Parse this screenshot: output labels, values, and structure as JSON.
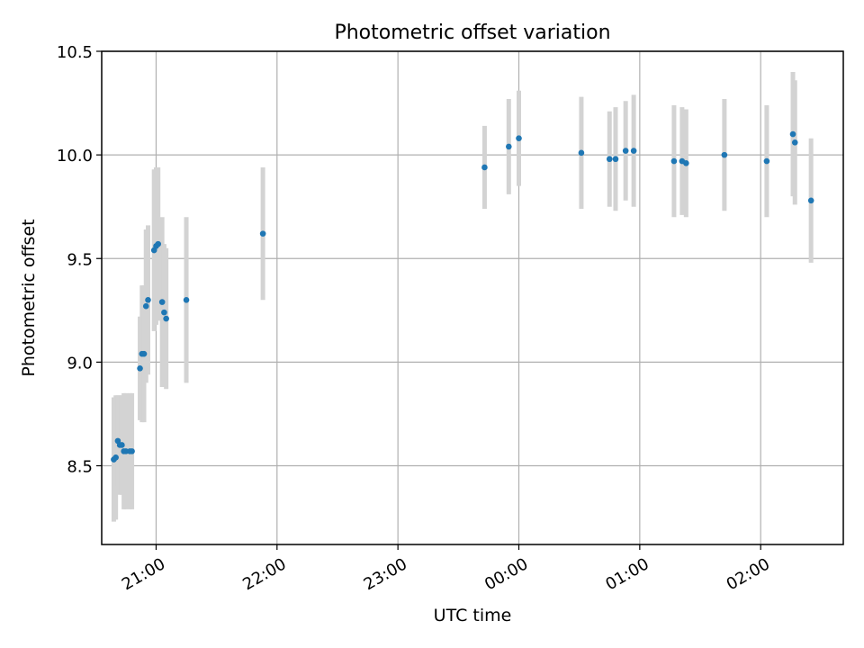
{
  "chart_data": {
    "type": "scatter",
    "title": "Photometric offset variation",
    "xlabel": "UTC time",
    "ylabel": "Photometric offset",
    "x_ticks": [
      "21:00",
      "22:00",
      "23:00",
      "00:00",
      "01:00",
      "02:00"
    ],
    "y_ticks": [
      "8.5",
      "9.0",
      "9.5",
      "10.0",
      "10.5"
    ],
    "ylim": [
      8.12,
      10.5
    ],
    "xlim": [
      "20:33",
      "02:41"
    ],
    "grid": true,
    "colors": {
      "point": "#1f77b4",
      "errorbar": "#d3d3d3",
      "grid": "#b0b0b0"
    },
    "points": [
      {
        "t": "20:39",
        "y": 8.53,
        "err": 0.3
      },
      {
        "t": "20:40",
        "y": 8.54,
        "err": 0.3
      },
      {
        "t": "20:41",
        "y": 8.62,
        "err": 0.22
      },
      {
        "t": "20:42",
        "y": 8.6,
        "err": 0.24
      },
      {
        "t": "20:43",
        "y": 8.6,
        "err": 0.24
      },
      {
        "t": "20:44",
        "y": 8.57,
        "err": 0.28
      },
      {
        "t": "20:45",
        "y": 8.57,
        "err": 0.28
      },
      {
        "t": "20:47",
        "y": 8.57,
        "err": 0.28
      },
      {
        "t": "20:48",
        "y": 8.57,
        "err": 0.28
      },
      {
        "t": "20:52",
        "y": 8.97,
        "err": 0.25
      },
      {
        "t": "20:53",
        "y": 9.04,
        "err": 0.33
      },
      {
        "t": "20:54",
        "y": 9.04,
        "err": 0.33
      },
      {
        "t": "20:55",
        "y": 9.27,
        "err": 0.37
      },
      {
        "t": "20:56",
        "y": 9.3,
        "err": 0.36
      },
      {
        "t": "20:59",
        "y": 9.54,
        "err": 0.39
      },
      {
        "t": "21:00",
        "y": 9.56,
        "err": 0.38
      },
      {
        "t": "21:01",
        "y": 9.57,
        "err": 0.37
      },
      {
        "t": "21:03",
        "y": 9.29,
        "err": 0.41
      },
      {
        "t": "21:04",
        "y": 9.24,
        "err": 0.33
      },
      {
        "t": "21:05",
        "y": 9.21,
        "err": 0.34
      },
      {
        "t": "21:15",
        "y": 9.3,
        "err": 0.4
      },
      {
        "t": "21:53",
        "y": 9.62,
        "err": 0.32
      },
      {
        "t": "23:43",
        "y": 9.94,
        "err": 0.2
      },
      {
        "t": "23:55",
        "y": 10.04,
        "err": 0.23
      },
      {
        "t": "00:00",
        "y": 10.08,
        "err": 0.23
      },
      {
        "t": "00:31",
        "y": 10.01,
        "err": 0.27
      },
      {
        "t": "00:45",
        "y": 9.98,
        "err": 0.23
      },
      {
        "t": "00:48",
        "y": 9.98,
        "err": 0.25
      },
      {
        "t": "00:53",
        "y": 10.02,
        "err": 0.24
      },
      {
        "t": "00:57",
        "y": 10.02,
        "err": 0.27
      },
      {
        "t": "01:17",
        "y": 9.97,
        "err": 0.27
      },
      {
        "t": "01:21",
        "y": 9.97,
        "err": 0.26
      },
      {
        "t": "01:23",
        "y": 9.96,
        "err": 0.26
      },
      {
        "t": "01:42",
        "y": 10.0,
        "err": 0.27
      },
      {
        "t": "02:03",
        "y": 9.97,
        "err": 0.27
      },
      {
        "t": "02:16",
        "y": 10.1,
        "err": 0.3
      },
      {
        "t": "02:17",
        "y": 10.06,
        "err": 0.3
      },
      {
        "t": "02:25",
        "y": 9.78,
        "err": 0.3
      }
    ]
  }
}
